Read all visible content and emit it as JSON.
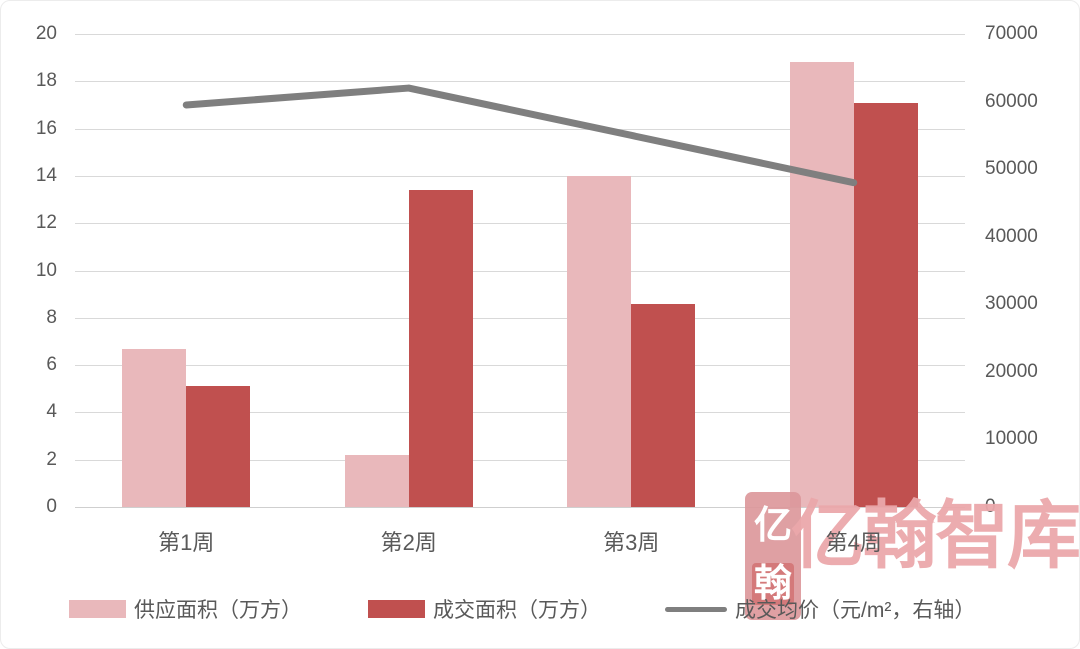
{
  "colors": {
    "supply_bar": "#e9b8bb",
    "transaction_bar": "#c0504f",
    "price_line": "#7f7f7f",
    "grid": "#d9d9d9",
    "axis_text": "#595959",
    "watermark_pink": "#eba8ab",
    "watermark_seal": "#dd989c"
  },
  "chart_data": {
    "type": "bar",
    "subtype": "grouped-bars-with-line",
    "categories": [
      "第1周",
      "第2周",
      "第3周",
      "第4周"
    ],
    "series": [
      {
        "name": "供应面积（万方）",
        "type": "bar",
        "axis": "left",
        "color": "#e9b8bb",
        "values": [
          6.7,
          2.2,
          14,
          18.8
        ]
      },
      {
        "name": "成交面积（万方）",
        "type": "bar",
        "axis": "left",
        "color": "#c0504f",
        "values": [
          5.1,
          13.4,
          8.6,
          17.1
        ]
      },
      {
        "name": "成交均价（元/m²，右轴）",
        "type": "line",
        "axis": "right",
        "color": "#7f7f7f",
        "values": [
          59500,
          62000,
          55000,
          48000
        ]
      }
    ],
    "left_axis": {
      "min": 0,
      "max": 20,
      "step": 2,
      "ticks": [
        0,
        2,
        4,
        6,
        8,
        10,
        12,
        14,
        16,
        18,
        20
      ]
    },
    "right_axis": {
      "min": 0,
      "max": 70000,
      "step": 10000,
      "ticks": [
        0,
        10000,
        20000,
        30000,
        40000,
        50000,
        60000,
        70000
      ]
    },
    "grid": true,
    "legend_position": "bottom"
  },
  "legend": {
    "items": [
      {
        "label": "供应面积（万方）"
      },
      {
        "label": "成交面积（万方）"
      },
      {
        "label": "成交均价（元/m²，右轴）"
      }
    ]
  },
  "watermark": {
    "seal_char_top": "亿",
    "seal_char_bottom": "翰",
    "brand": "亿翰智库"
  }
}
